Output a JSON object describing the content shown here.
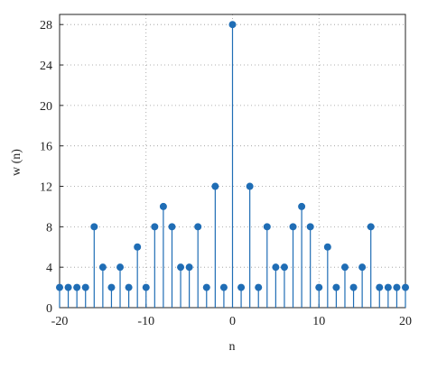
{
  "chart_data": {
    "type": "stem",
    "xlabel": "n",
    "ylabel": "w (n)",
    "x": [
      -20,
      -19,
      -18,
      -17,
      -16,
      -15,
      -14,
      -13,
      -12,
      -11,
      -10,
      -9,
      -8,
      -7,
      -6,
      -5,
      -4,
      -3,
      -2,
      -1,
      0,
      1,
      2,
      3,
      4,
      5,
      6,
      7,
      8,
      9,
      10,
      11,
      12,
      13,
      14,
      15,
      16,
      17,
      18,
      19,
      20
    ],
    "values": [
      2,
      2,
      2,
      2,
      8,
      4,
      2,
      4,
      2,
      6,
      2,
      8,
      10,
      8,
      4,
      4,
      8,
      2,
      12,
      2,
      28,
      2,
      12,
      2,
      8,
      4,
      4,
      8,
      10,
      8,
      2,
      6,
      2,
      4,
      2,
      4,
      8,
      2,
      2,
      2,
      2
    ],
    "color": "#1f6db5",
    "xlim": [
      -20,
      20
    ],
    "ylim": [
      0,
      29
    ],
    "xticks": [
      -20,
      -10,
      0,
      10,
      20
    ],
    "yticks": [
      0,
      4,
      8,
      12,
      16,
      20,
      24,
      28
    ],
    "grid": true
  }
}
